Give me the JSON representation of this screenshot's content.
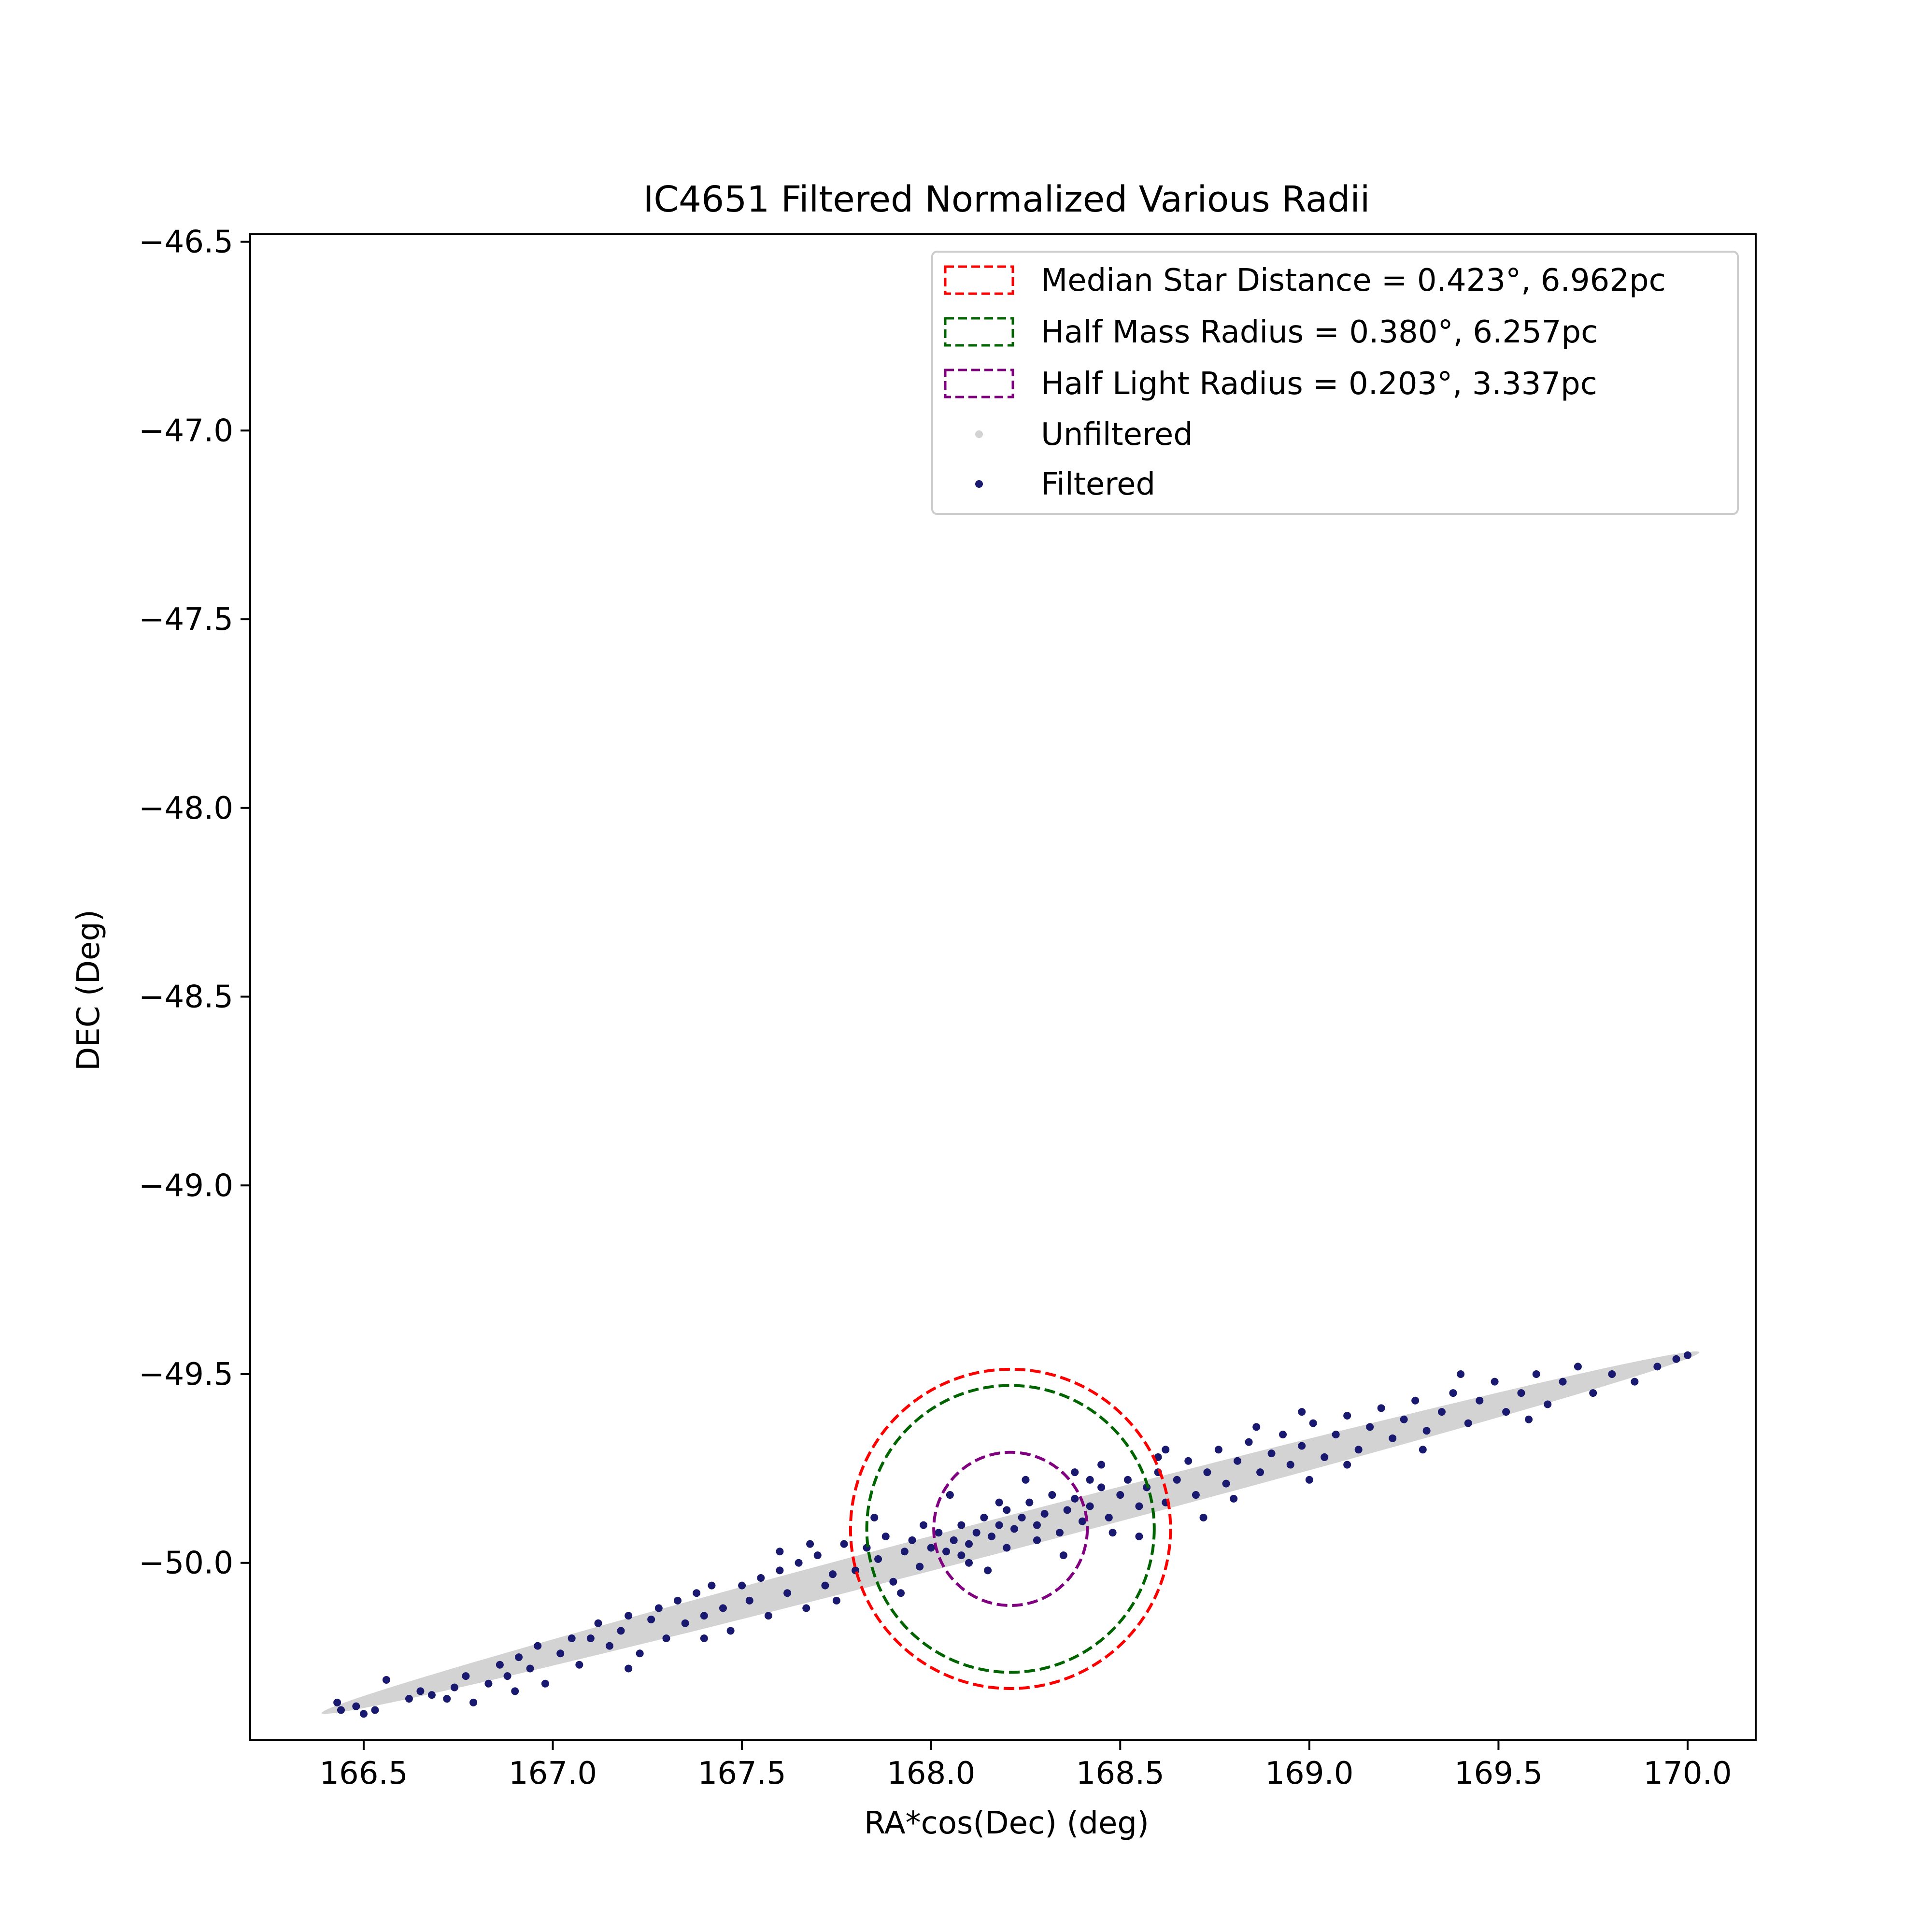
{
  "chart_data": {
    "type": "scatter",
    "title": "IC4651 Filtered Normalized Various Radii",
    "xlabel": "RA*cos(Dec) (deg)",
    "ylabel": "DEC (Deg)",
    "xlim": [
      166.2,
      170.18
    ],
    "ylim": [
      -50.47,
      -46.48
    ],
    "x_ticks": [
      166.5,
      167.0,
      167.5,
      168.0,
      168.5,
      169.0,
      169.5,
      170.0
    ],
    "x_tick_labels": [
      "166.5",
      "167.0",
      "167.5",
      "168.0",
      "168.5",
      "169.0",
      "169.5",
      "170.0"
    ],
    "y_ticks": [
      -46.5,
      -47.0,
      -47.5,
      -48.0,
      -48.5,
      -49.0,
      -49.5,
      -50.0
    ],
    "y_tick_labels": [
      "−46.5",
      "−47.0",
      "−47.5",
      "−48.0",
      "−48.5",
      "−49.0",
      "−49.5",
      "−50.0"
    ],
    "grid": false,
    "legend_position": "top-right",
    "circles": [
      {
        "name": "Median Star Distance = 0.423°, 6.962pc",
        "center": [
          168.21,
          -49.91
        ],
        "radius": 0.423,
        "color": "#ff0000"
      },
      {
        "name": "Half Mass Radius = 0.380°, 6.257pc",
        "center": [
          168.21,
          -49.91
        ],
        "radius": 0.38,
        "color": "#006400"
      },
      {
        "name": "Half Light Radius = 0.203°, 3.337pc",
        "center": [
          168.21,
          -49.91
        ],
        "radius": 0.203,
        "color": "#800080"
      }
    ],
    "series": [
      {
        "name": "Unfiltered",
        "color": "#d3d3d3",
        "band": {
          "from": [
            166.42,
            -50.39
          ],
          "to": [
            170.0,
            -49.45
          ],
          "half_width": 0.045
        }
      },
      {
        "name": "Filtered",
        "color": "#191970",
        "points": [
          [
            166.43,
            -50.37
          ],
          [
            166.44,
            -50.39
          ],
          [
            166.48,
            -50.38
          ],
          [
            166.5,
            -50.4
          ],
          [
            166.53,
            -50.39
          ],
          [
            166.56,
            -50.31
          ],
          [
            166.62,
            -50.36
          ],
          [
            166.65,
            -50.34
          ],
          [
            166.68,
            -50.35
          ],
          [
            166.72,
            -50.36
          ],
          [
            166.74,
            -50.33
          ],
          [
            166.77,
            -50.3
          ],
          [
            166.79,
            -50.37
          ],
          [
            166.83,
            -50.32
          ],
          [
            166.86,
            -50.27
          ],
          [
            166.88,
            -50.3
          ],
          [
            166.91,
            -50.25
          ],
          [
            166.94,
            -50.28
          ],
          [
            166.96,
            -50.22
          ],
          [
            166.98,
            -50.32
          ],
          [
            167.02,
            -50.24
          ],
          [
            167.05,
            -50.2
          ],
          [
            167.07,
            -50.27
          ],
          [
            167.1,
            -50.2
          ],
          [
            167.12,
            -50.16
          ],
          [
            167.15,
            -50.22
          ],
          [
            167.18,
            -50.18
          ],
          [
            167.2,
            -50.14
          ],
          [
            167.23,
            -50.24
          ],
          [
            167.26,
            -50.15
          ],
          [
            167.28,
            -50.12
          ],
          [
            167.3,
            -50.2
          ],
          [
            167.33,
            -50.1
          ],
          [
            167.35,
            -50.16
          ],
          [
            167.38,
            -50.08
          ],
          [
            167.4,
            -50.14
          ],
          [
            167.42,
            -50.06
          ],
          [
            167.45,
            -50.12
          ],
          [
            167.47,
            -50.18
          ],
          [
            167.5,
            -50.06
          ],
          [
            167.52,
            -50.1
          ],
          [
            167.55,
            -50.04
          ],
          [
            167.57,
            -50.14
          ],
          [
            167.6,
            -50.02
          ],
          [
            167.62,
            -50.08
          ],
          [
            167.65,
            -50.0
          ],
          [
            167.67,
            -50.12
          ],
          [
            167.7,
            -49.98
          ],
          [
            167.72,
            -50.06
          ],
          [
            167.74,
            -50.03
          ],
          [
            167.77,
            -49.95
          ],
          [
            167.8,
            -50.02
          ],
          [
            167.83,
            -49.96
          ],
          [
            167.86,
            -49.99
          ],
          [
            167.88,
            -49.93
          ],
          [
            167.9,
            -50.05
          ],
          [
            167.93,
            -49.97
          ],
          [
            167.95,
            -49.94
          ],
          [
            167.97,
            -50.01
          ],
          [
            168.0,
            -49.96
          ],
          [
            168.02,
            -49.92
          ],
          [
            168.04,
            -49.97
          ],
          [
            168.06,
            -49.94
          ],
          [
            168.08,
            -49.9
          ],
          [
            168.1,
            -49.95
          ],
          [
            168.12,
            -49.92
          ],
          [
            168.14,
            -49.88
          ],
          [
            168.16,
            -49.93
          ],
          [
            168.18,
            -49.9
          ],
          [
            168.2,
            -49.86
          ],
          [
            168.22,
            -49.91
          ],
          [
            168.24,
            -49.88
          ],
          [
            168.26,
            -49.84
          ],
          [
            168.28,
            -49.9
          ],
          [
            168.3,
            -49.87
          ],
          [
            168.32,
            -49.82
          ],
          [
            168.34,
            -49.92
          ],
          [
            168.36,
            -49.86
          ],
          [
            168.38,
            -49.83
          ],
          [
            168.4,
            -49.89
          ],
          [
            168.42,
            -49.85
          ],
          [
            168.45,
            -49.8
          ],
          [
            168.47,
            -49.88
          ],
          [
            168.5,
            -49.82
          ],
          [
            168.52,
            -49.78
          ],
          [
            168.55,
            -49.85
          ],
          [
            168.57,
            -49.8
          ],
          [
            168.6,
            -49.76
          ],
          [
            168.62,
            -49.84
          ],
          [
            168.65,
            -49.78
          ],
          [
            168.68,
            -49.73
          ],
          [
            168.7,
            -49.82
          ],
          [
            168.73,
            -49.76
          ],
          [
            168.76,
            -49.7
          ],
          [
            168.78,
            -49.79
          ],
          [
            168.81,
            -49.73
          ],
          [
            168.84,
            -49.68
          ],
          [
            168.87,
            -49.76
          ],
          [
            168.9,
            -49.71
          ],
          [
            168.93,
            -49.66
          ],
          [
            168.95,
            -49.74
          ],
          [
            168.98,
            -49.69
          ],
          [
            169.01,
            -49.63
          ],
          [
            169.04,
            -49.72
          ],
          [
            169.07,
            -49.66
          ],
          [
            169.1,
            -49.61
          ],
          [
            169.13,
            -49.7
          ],
          [
            169.16,
            -49.64
          ],
          [
            169.19,
            -49.59
          ],
          [
            169.22,
            -49.67
          ],
          [
            169.25,
            -49.62
          ],
          [
            169.28,
            -49.57
          ],
          [
            169.31,
            -49.65
          ],
          [
            169.35,
            -49.6
          ],
          [
            169.38,
            -49.55
          ],
          [
            169.42,
            -49.63
          ],
          [
            169.45,
            -49.57
          ],
          [
            169.49,
            -49.52
          ],
          [
            169.52,
            -49.6
          ],
          [
            169.56,
            -49.55
          ],
          [
            169.6,
            -49.5
          ],
          [
            169.63,
            -49.58
          ],
          [
            169.67,
            -49.52
          ],
          [
            169.71,
            -49.48
          ],
          [
            169.75,
            -49.55
          ],
          [
            169.8,
            -49.5
          ],
          [
            169.86,
            -49.52
          ],
          [
            169.92,
            -49.48
          ],
          [
            169.97,
            -49.46
          ],
          [
            170.0,
            -49.45
          ],
          [
            167.85,
            -49.88
          ],
          [
            167.92,
            -50.08
          ],
          [
            168.05,
            -49.82
          ],
          [
            168.15,
            -50.02
          ],
          [
            168.25,
            -49.78
          ],
          [
            168.35,
            -49.98
          ],
          [
            168.45,
            -49.74
          ],
          [
            168.55,
            -49.93
          ],
          [
            168.62,
            -49.7
          ],
          [
            168.72,
            -49.88
          ],
          [
            167.75,
            -50.1
          ],
          [
            168.1,
            -50.0
          ],
          [
            168.38,
            -49.76
          ],
          [
            168.8,
            -49.83
          ],
          [
            169.0,
            -49.78
          ],
          [
            169.3,
            -49.7
          ],
          [
            167.4,
            -50.2
          ],
          [
            167.2,
            -50.28
          ],
          [
            166.9,
            -50.34
          ],
          [
            168.6,
            -49.72
          ],
          [
            168.2,
            -49.96
          ],
          [
            168.28,
            -49.94
          ],
          [
            168.08,
            -49.98
          ],
          [
            167.98,
            -49.9
          ],
          [
            168.48,
            -49.92
          ],
          [
            168.18,
            -49.84
          ],
          [
            168.42,
            -49.78
          ],
          [
            167.68,
            -49.95
          ],
          [
            167.6,
            -49.97
          ],
          [
            168.98,
            -49.6
          ],
          [
            169.4,
            -49.5
          ],
          [
            169.58,
            -49.62
          ],
          [
            169.1,
            -49.74
          ],
          [
            168.86,
            -49.64
          ]
        ]
      }
    ]
  }
}
